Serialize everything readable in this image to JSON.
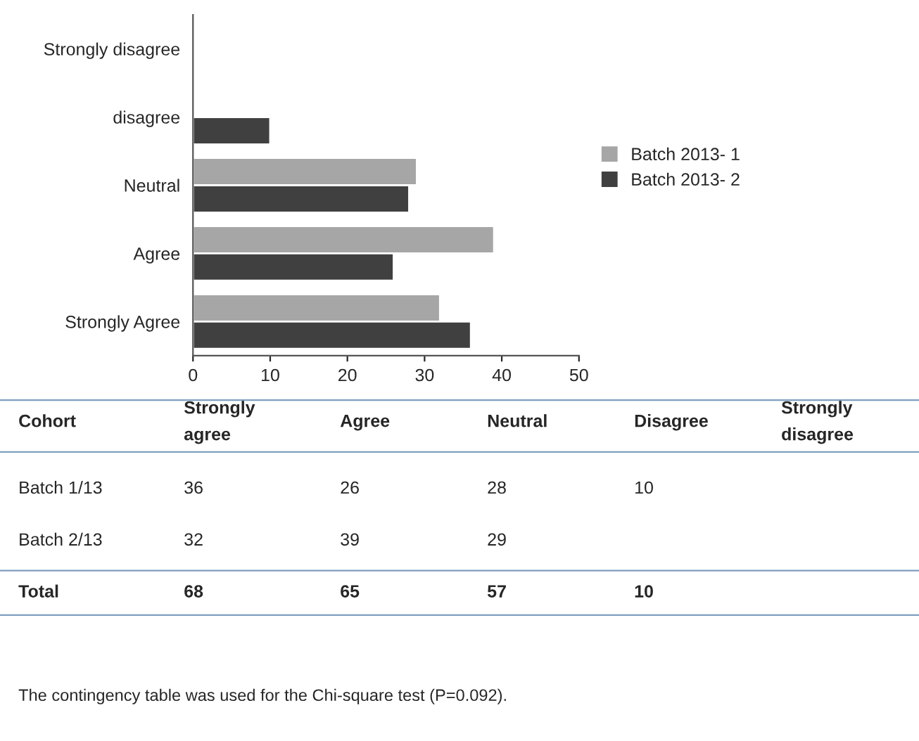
{
  "chart_data": {
    "type": "bar",
    "orientation": "horizontal",
    "categories": [
      "Strongly disagree",
      "disagree",
      "Neutral",
      "Agree",
      "Strongly Agree"
    ],
    "series": [
      {
        "name": "Batch 2013- 1",
        "color": "#a6a6a6",
        "values": [
          null,
          null,
          29,
          39,
          32
        ]
      },
      {
        "name": "Batch 2013- 2",
        "color": "#404040",
        "values": [
          null,
          10,
          28,
          26,
          36
        ]
      }
    ],
    "xlim": [
      0,
      50
    ],
    "xticks": [
      0,
      10,
      20,
      30,
      40,
      50
    ],
    "grid": false,
    "legend": "right",
    "annotations": [
      "Cohort\tStrongly agree\tAgree\tNeutral\tDisagree\tStrongly disagree",
      "Batch 1/13\t36\t26\t28\t10",
      "Batch 2/13\t32\t39\t29",
      "Total\t68\t65\t57\t10",
      "The contingency table was used for the Chi-square test (P=0.092)."
    ]
  }
}
